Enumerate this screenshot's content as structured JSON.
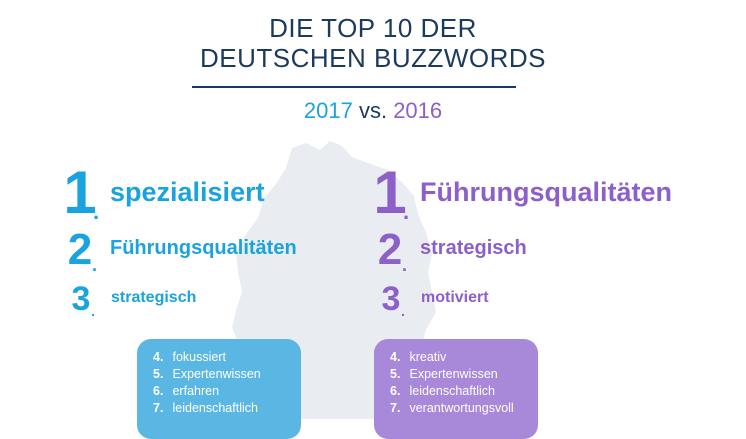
{
  "title": {
    "line1": "DIE TOP 10 DER",
    "line2": "DEUTSCHEN BUZZWORDS"
  },
  "comparison": {
    "year_a": "2017",
    "separator": "vs.",
    "year_b": "2016"
  },
  "col_2017": {
    "top": [
      {
        "rank": "1",
        "word": "spezialisiert"
      },
      {
        "rank": "2",
        "word": "Führungsqualitäten"
      },
      {
        "rank": "3",
        "word": "strategisch"
      }
    ],
    "more": [
      {
        "rank": "4.",
        "word": "fokussiert"
      },
      {
        "rank": "5.",
        "word": "Expertenwissen"
      },
      {
        "rank": "6.",
        "word": "erfahren"
      },
      {
        "rank": "7.",
        "word": "leidenschaftlich"
      }
    ]
  },
  "col_2016": {
    "top": [
      {
        "rank": "1",
        "word": "Führungsqualitäten"
      },
      {
        "rank": "2",
        "word": "strategisch"
      },
      {
        "rank": "3",
        "word": "motiviert"
      }
    ],
    "more": [
      {
        "rank": "4.",
        "word": "kreativ"
      },
      {
        "rank": "5.",
        "word": "Expertenwissen"
      },
      {
        "rank": "6.",
        "word": "leidenschaftlich"
      },
      {
        "rank": "7.",
        "word": "verantwortungsvoll"
      }
    ]
  },
  "colors": {
    "title": "#1c3a5e",
    "blue_2017": "#1aa3dc",
    "purple_2016": "#8c5fc9",
    "box_blue": "#5ab7e4",
    "box_purple": "#a888d8",
    "map": "#e9edf2"
  },
  "icons": {
    "background": "germany-map-silhouette"
  }
}
